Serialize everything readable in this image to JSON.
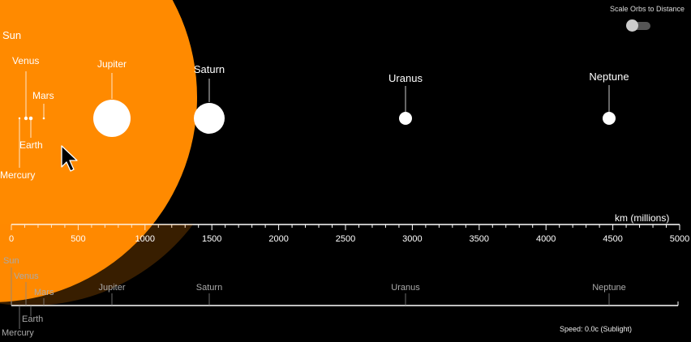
{
  "sun": {
    "name": "Sun",
    "color": "#ff8a00"
  },
  "planets": [
    {
      "name": "Mercury"
    },
    {
      "name": "Venus"
    },
    {
      "name": "Earth"
    },
    {
      "name": "Mars"
    },
    {
      "name": "Jupiter"
    },
    {
      "name": "Saturn"
    },
    {
      "name": "Uranus"
    },
    {
      "name": "Neptune"
    }
  ],
  "axis": {
    "unit_label": "km (millions)",
    "ticks": [
      "0",
      "500",
      "1000",
      "1500",
      "2000",
      "2500",
      "3000",
      "3500",
      "4000",
      "4500",
      "5000"
    ]
  },
  "controls": {
    "toggle_label": "Scale Orbs to Distance",
    "toggle_on": false,
    "speed_text": "Speed: 0.0c (Sublight)"
  },
  "minimap": {
    "labels": [
      "Sun",
      "Venus",
      "Mars",
      "Jupiter",
      "Saturn",
      "Uranus",
      "Neptune",
      "Mercury",
      "Earth"
    ]
  }
}
